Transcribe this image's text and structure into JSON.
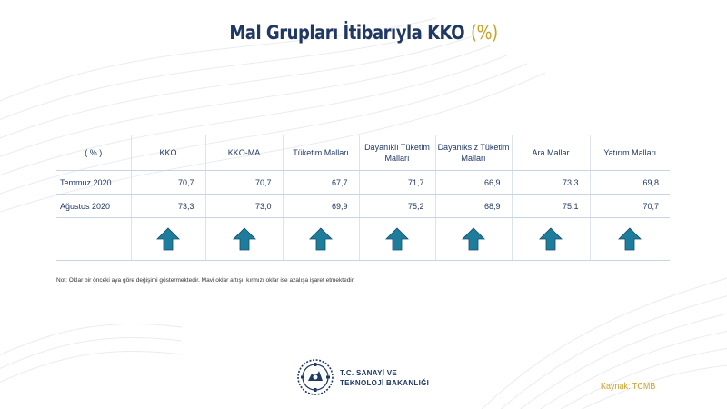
{
  "title": {
    "text": "Mal Grupları İtibarıyla KKO",
    "unit": "(%)"
  },
  "table": {
    "header": [
      "( % )",
      "KKO",
      "KKO-MA",
      "Tüketim Malları",
      "Dayanıklı Tüketim Malları",
      "Dayanıksız Tüketim Malları",
      "Ara Mallar",
      "Yatırım Malları"
    ],
    "rows": [
      {
        "label": "Temmuz 2020",
        "values": [
          "70,7",
          "70,7",
          "67,7",
          "71,7",
          "66,9",
          "73,3",
          "69,8"
        ]
      },
      {
        "label": "Ağustos 2020",
        "values": [
          "73,3",
          "73,0",
          "69,9",
          "75,2",
          "68,9",
          "75,1",
          "70,7"
        ]
      }
    ],
    "arrows": [
      "up",
      "up",
      "up",
      "up",
      "up",
      "up",
      "up"
    ],
    "arrow_color": "#1e7d9c"
  },
  "note": "Not: Oklar bir önceki aya göre değişimi göstermektedir. Mavi oklar artışı, kırmızı oklar ise azalışa işaret etmektedir.",
  "logo": {
    "line1": "T.C. SANAYİ VE",
    "line2": "TEKNOLOJİ BAKANLIĞI",
    "icon": "ministry-emblem-icon"
  },
  "source": "Kaynak: TCMB",
  "colors": {
    "title": "#1f3864",
    "accent": "#c9a227",
    "text": "#1f3864"
  }
}
